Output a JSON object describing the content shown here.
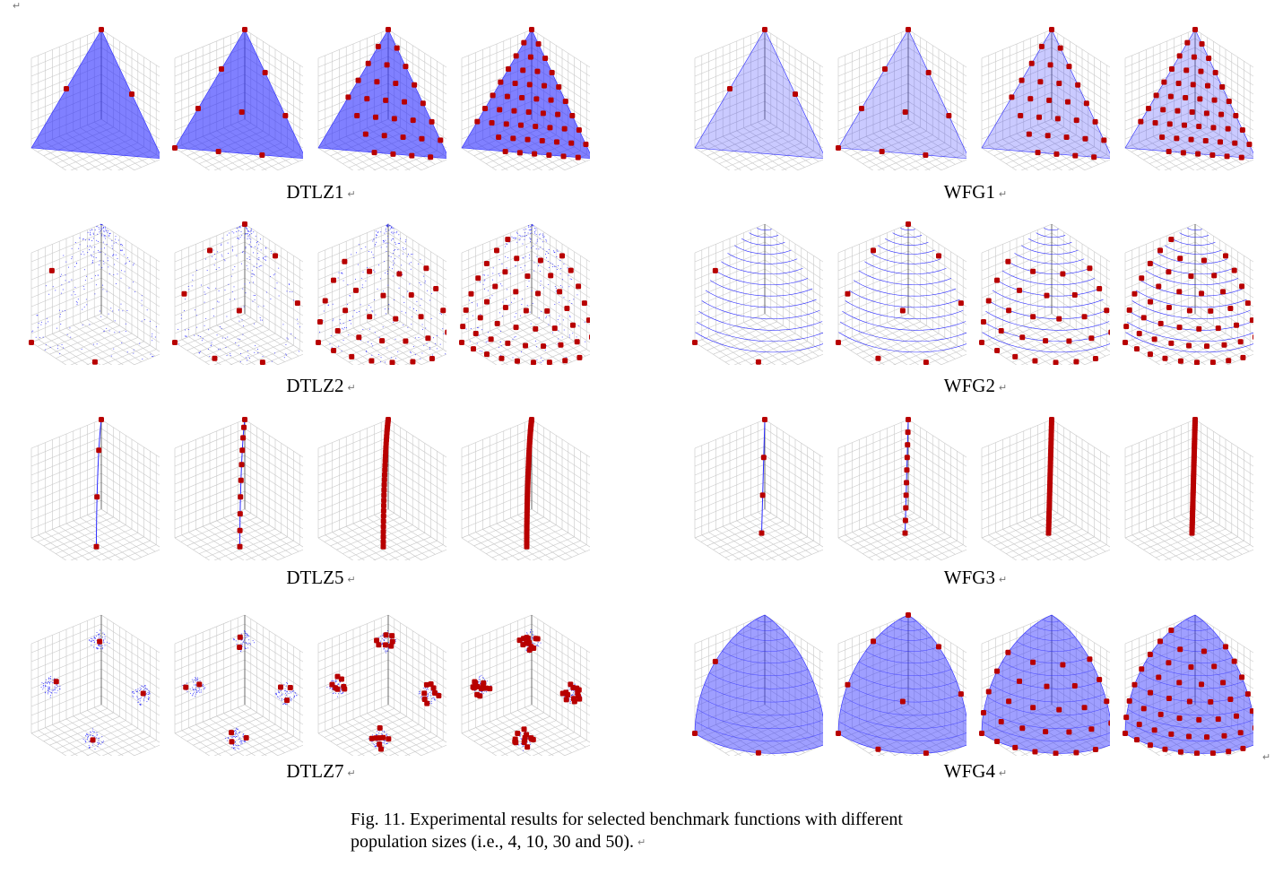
{
  "paragraph_mark": "↵",
  "groups": [
    {
      "id": "dtlz1",
      "label": "DTLZ1",
      "shape": "linear",
      "fill": "dense"
    },
    {
      "id": "wfg1",
      "label": "WFG1",
      "shape": "mixed",
      "fill": "dense"
    },
    {
      "id": "dtlz2",
      "label": "DTLZ2",
      "shape": "sphere",
      "fill": "sparse"
    },
    {
      "id": "wfg2",
      "label": "WFG2",
      "shape": "disconnected",
      "fill": "lines"
    },
    {
      "id": "dtlz5",
      "label": "DTLZ5",
      "shape": "curve",
      "fill": "none"
    },
    {
      "id": "wfg3",
      "label": "WFG3",
      "shape": "line",
      "fill": "none"
    },
    {
      "id": "dtlz7",
      "label": "DTLZ7",
      "shape": "patches",
      "fill": "sparse"
    },
    {
      "id": "wfg4",
      "label": "WFG4",
      "shape": "sphere",
      "fill": "dense"
    }
  ],
  "population_sizes": [
    4,
    10,
    30,
    50
  ],
  "colors": {
    "front": "#2b2bff",
    "points": "#b80000",
    "grid": "#c8c8c8"
  },
  "figure_caption": {
    "line1": "Fig. 11. Experimental results for selected benchmark functions with different",
    "line2": "population sizes (i.e., 4, 10, 30 and 50)."
  }
}
